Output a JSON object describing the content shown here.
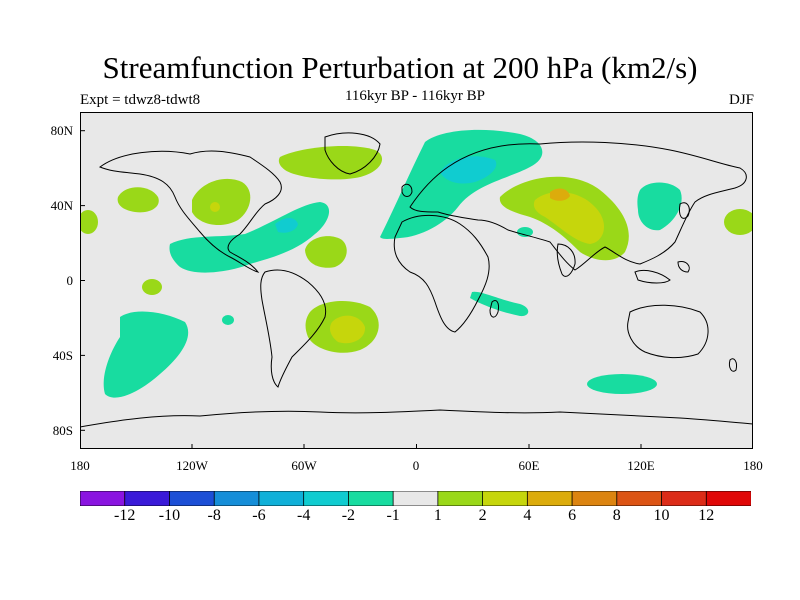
{
  "title": "Streamfunction Perturbation at 200 hPa (km2/s)",
  "expt": "Expt = tdwz8-tdwt8",
  "subtitle": "116kyr BP - 116kyr BP",
  "season": "DJF",
  "lat_labels": [
    "80N",
    "40N",
    "0",
    "40S",
    "80S"
  ],
  "lon_labels": [
    "180",
    "120W",
    "60W",
    "0",
    "60E",
    "120E",
    "180"
  ],
  "colorbar": {
    "labels": [
      "-12",
      "-10",
      "-8",
      "-6",
      "-4",
      "-2",
      "-1",
      "1",
      "2",
      "4",
      "6",
      "8",
      "10",
      "12"
    ],
    "colors": [
      "#8a14e0",
      "#3a1ad8",
      "#1c4fd6",
      "#168ed8",
      "#10b0d8",
      "#10ccd0",
      "#18dca0",
      "#e8e8e8",
      "#9ad818",
      "#c6d60c",
      "#dcac0c",
      "#dc8410",
      "#dc5414",
      "#dc2c18",
      "#e00808"
    ]
  },
  "colors": {
    "land_bg": "#e8e8e8",
    "coast": "#000000"
  }
}
